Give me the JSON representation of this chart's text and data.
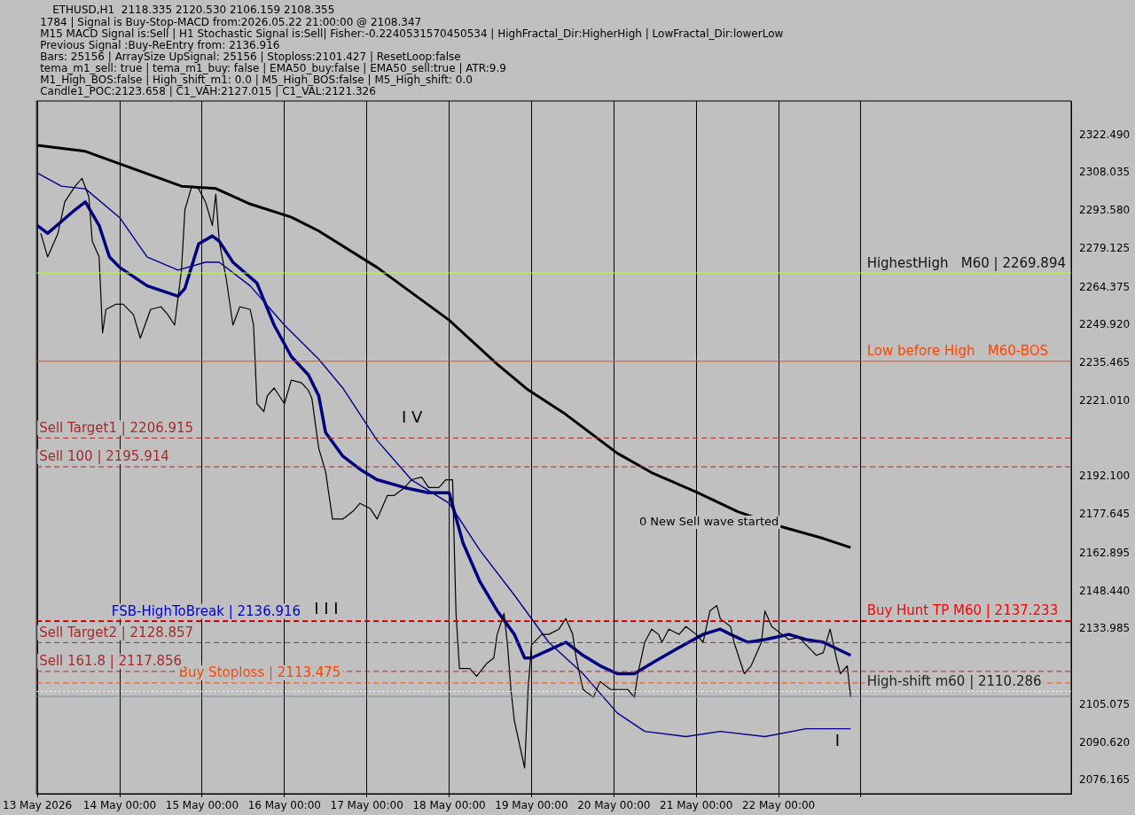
{
  "chart_data": {
    "type": "line",
    "title": "ETHUSD,H1  2118.335 2120.530 2106.159 2108.355",
    "annotations": [
      "1784 | Signal is Buy-Stop-MACD from:2026.05.22 21:00:00 @ 2108.347",
      "M15 MACD Signal is:Sell | H1 Stochastic Signal is:Sell| Fisher:-0.2240531570450534 | HighFractal_Dir:HigherHigh | LowFractal_Dir:lowerLow",
      "Previous Signal :Buy-ReEntry from: 2136.916",
      "Bars: 25156 | ArraySize UpSignal: 25156 | Stoploss:2101.427 | ResetLoop:false",
      "tema_m1_sell: true | tema_m1_buy: false | EMA50_buy:false | EMA50_sell:true | ATR:9.9",
      "M1_High_BOS:false | High_shift_m1: 0.0 | M5_High_BOS:false | M5_High_shift: 0.0",
      "Candle1_POC:2123.658 | C1_VAH:2127.015 | C1_VAL:2121.326",
      "I V",
      "I I I",
      "0 New Sell wave started",
      "I"
    ],
    "xlim": [
      "2026-05-12T23:45",
      "2026-05-25T13:15"
    ],
    "xticks": [
      {
        "value": "2026-05-13T00:00",
        "label": "13 May 2026"
      },
      {
        "value": "2026-05-14T00:00",
        "label": "14 May 00:00"
      },
      {
        "value": "2026-05-15T00:00",
        "label": "15 May 00:00"
      },
      {
        "value": "2026-05-16T00:00",
        "label": "16 May 00:00"
      },
      {
        "value": "2026-05-17T00:00",
        "label": "17 May 00:00"
      },
      {
        "value": "2026-05-18T00:00",
        "label": "18 May 00:00"
      },
      {
        "value": "2026-05-19T00:00",
        "label": "19 May 00:00"
      },
      {
        "value": "2026-05-20T00:00",
        "label": "20 May 00:00"
      },
      {
        "value": "2026-05-21T00:00",
        "label": "21 May 00:00"
      },
      {
        "value": "2026-05-22T00:00",
        "label": "22 May 00:00"
      },
      {
        "value": "2026-05-23T00:00",
        "label": null
      }
    ],
    "ylim": [
      2071.2,
      2335.5
    ],
    "yticks": [
      {
        "value": 2322.49,
        "label": "2322.490"
      },
      {
        "value": 2308.035,
        "label": "2308.035"
      },
      {
        "value": 2293.58,
        "label": "2293.580"
      },
      {
        "value": 2279.125,
        "label": "2279.125"
      },
      {
        "value": 2264.375,
        "label": "2264.375"
      },
      {
        "value": 2249.92,
        "label": "2249.920"
      },
      {
        "value": 2235.465,
        "label": "2235.465"
      },
      {
        "value": 2221.01,
        "label": "2221.010"
      },
      {
        "value": 2192.1,
        "label": "2192.100"
      },
      {
        "value": 2177.645,
        "label": "2177.645"
      },
      {
        "value": 2162.895,
        "label": "2162.895"
      },
      {
        "value": 2148.44,
        "label": "2148.440"
      },
      {
        "value": 2133.985,
        "label": "2133.985"
      },
      {
        "value": 2105.075,
        "label": "2105.075"
      },
      {
        "value": 2090.62,
        "label": "2090.620"
      },
      {
        "value": 2076.165,
        "label": "2076.165"
      }
    ],
    "grid": "x",
    "legend": false,
    "marker": "none",
    "line_style": "solid",
    "series": [
      {
        "color": "#000000",
        "x": [
          "2026-05-13T01:00",
          "2026-05-13T03:00",
          "2026-05-13T06:00",
          "2026-05-13T08:00",
          "2026-05-13T11:00",
          "2026-05-13T13:00",
          "2026-05-13T15:00",
          "2026-05-13T16:00",
          "2026-05-13T18:00",
          "2026-05-13T19:00",
          "2026-05-13T20:00",
          "2026-05-13T23:00",
          "2026-05-14T01:00",
          "2026-05-14T04:00",
          "2026-05-14T06:00",
          "2026-05-14T09:00",
          "2026-05-14T12:00",
          "2026-05-14T14:00",
          "2026-05-14T16:00",
          "2026-05-14T18:00",
          "2026-05-14T19:00",
          "2026-05-14T21:00",
          "2026-05-14T23:00",
          "2026-05-15T01:00",
          "2026-05-15T03:00",
          "2026-05-15T04:00",
          "2026-05-15T05:00",
          "2026-05-15T07:00",
          "2026-05-15T09:00",
          "2026-05-15T11:00",
          "2026-05-15T14:00",
          "2026-05-15T15:00",
          "2026-05-15T16:00",
          "2026-05-15T18:00",
          "2026-05-15T19:00",
          "2026-05-15T21:00",
          "2026-05-16T00:00",
          "2026-05-16T02:00",
          "2026-05-16T05:00",
          "2026-05-16T07:00",
          "2026-05-16T08:00",
          "2026-05-16T10:00",
          "2026-05-16T12:00",
          "2026-05-16T14:00",
          "2026-05-16T17:00",
          "2026-05-16T20:00",
          "2026-05-16T22:00",
          "2026-05-17T01:00",
          "2026-05-17T03:00",
          "2026-05-17T06:00",
          "2026-05-17T08:00",
          "2026-05-17T11:00",
          "2026-05-17T13:00",
          "2026-05-17T16:00",
          "2026-05-17T18:00",
          "2026-05-17T21:00",
          "2026-05-17T23:00",
          "2026-05-18T01:00",
          "2026-05-18T02:00",
          "2026-05-18T03:00",
          "2026-05-18T06:00",
          "2026-05-18T08:00",
          "2026-05-18T11:00",
          "2026-05-18T13:00",
          "2026-05-18T14:00",
          "2026-05-18T16:00",
          "2026-05-18T17:00",
          "2026-05-18T18:00",
          "2026-05-18T19:00",
          "2026-05-18T21:00",
          "2026-05-18T22:00",
          "2026-05-18T23:00",
          "2026-05-19T00:00",
          "2026-05-19T03:00",
          "2026-05-19T05:00",
          "2026-05-19T08:00",
          "2026-05-19T10:00",
          "2026-05-19T12:00",
          "2026-05-19T13:00",
          "2026-05-19T15:00",
          "2026-05-19T18:00",
          "2026-05-19T20:00",
          "2026-05-19T23:00",
          "2026-05-20T01:00",
          "2026-05-20T04:00",
          "2026-05-20T06:00",
          "2026-05-20T07:00",
          "2026-05-20T09:00",
          "2026-05-20T11:00",
          "2026-05-20T13:00",
          "2026-05-20T14:00",
          "2026-05-20T16:00",
          "2026-05-20T19:00",
          "2026-05-20T21:00",
          "2026-05-21T00:00",
          "2026-05-21T02:00",
          "2026-05-21T04:00",
          "2026-05-21T06:00",
          "2026-05-21T07:00",
          "2026-05-21T10:00",
          "2026-05-21T11:00",
          "2026-05-21T14:00",
          "2026-05-21T16:00",
          "2026-05-21T19:00",
          "2026-05-21T20:00",
          "2026-05-21T22:00",
          "2026-05-22T01:00",
          "2026-05-22T03:00",
          "2026-05-22T06:00",
          "2026-05-22T08:00",
          "2026-05-22T11:00",
          "2026-05-22T13:00",
          "2026-05-22T15:00",
          "2026-05-22T17:00",
          "2026-05-22T18:00",
          "2026-05-22T20:00",
          "2026-05-22T21:00"
        ],
        "values": [
          2285,
          2276,
          2285,
          2297,
          2303,
          2306,
          2299,
          2282,
          2276,
          2247,
          2256,
          2258,
          2258,
          2254,
          2245,
          2256,
          2257,
          2254,
          2250,
          2271,
          2294,
          2303,
          2302,
          2297,
          2288,
          2300,
          2282,
          2268,
          2250,
          2257,
          2256,
          2250,
          2220,
          2217,
          2223,
          2226,
          2220,
          2229,
          2228,
          2225,
          2222,
          2203,
          2194,
          2176,
          2176,
          2179,
          2182,
          2180,
          2176,
          2185,
          2185,
          2188,
          2191,
          2192,
          2188,
          2188,
          2191,
          2191,
          2140,
          2119,
          2119,
          2116,
          2121,
          2123,
          2132,
          2140,
          2128,
          2111,
          2099,
          2087,
          2081,
          2111,
          2128,
          2132,
          2132,
          2134,
          2138,
          2132,
          2123,
          2111,
          2108,
          2114,
          2111,
          2111,
          2111,
          2108,
          2117,
          2129,
          2134,
          2132,
          2129,
          2134,
          2132,
          2135,
          2132,
          2129,
          2141,
          2143,
          2138,
          2135,
          2129,
          2117,
          2120,
          2129,
          2141,
          2135,
          2132,
          2130,
          2131,
          2128,
          2124,
          2125,
          2134,
          2122,
          2117,
          2120,
          2108
        ]
      },
      {
        "color": "#000000",
        "x": [
          "2026-05-13T00:00",
          "2026-05-13T14:00",
          "2026-05-14T18:00",
          "2026-05-15T04:00",
          "2026-05-15T14:00",
          "2026-05-16T02:00",
          "2026-05-16T10:00",
          "2026-05-17T03:00",
          "2026-05-18T00:00",
          "2026-05-18T14:00",
          "2026-05-18T23:00",
          "2026-05-19T10:00",
          "2026-05-20T01:00",
          "2026-05-20T11:00",
          "2026-05-21T00:00",
          "2026-05-21T12:00",
          "2026-05-22T01:00",
          "2026-05-22T13:00",
          "2026-05-22T21:00"
        ],
        "values": [
          2318.6,
          2316.3,
          2303,
          2302.1,
          2296.2,
          2291.2,
          2285.9,
          2272,
          2251.9,
          2235.1,
          2225.3,
          2215.9,
          2201.1,
          2193.7,
          2186.3,
          2178.9,
          2173,
          2168.6,
          2165.1
        ]
      },
      {
        "color": "#000080",
        "x": [
          "2026-05-13T00:00",
          "2026-05-13T03:00",
          "2026-05-13T11:00",
          "2026-05-13T14:00",
          "2026-05-13T18:00",
          "2026-05-13T21:00",
          "2026-05-14T00:00",
          "2026-05-14T08:00",
          "2026-05-14T17:00",
          "2026-05-14T19:00",
          "2026-05-14T23:00",
          "2026-05-15T03:00",
          "2026-05-15T05:00",
          "2026-05-15T09:00",
          "2026-05-15T16:00",
          "2026-05-15T21:00",
          "2026-05-16T02:00",
          "2026-05-16T07:00",
          "2026-05-16T10:00",
          "2026-05-16T12:00",
          "2026-05-16T17:00",
          "2026-05-16T22:00",
          "2026-05-17T03:00",
          "2026-05-17T11:00",
          "2026-05-17T18:00",
          "2026-05-18T00:00",
          "2026-05-18T04:00",
          "2026-05-18T09:00",
          "2026-05-18T14:00",
          "2026-05-18T19:00",
          "2026-05-18T22:00",
          "2026-05-19T00:00",
          "2026-05-19T05:00",
          "2026-05-19T10:00",
          "2026-05-19T15:00",
          "2026-05-19T20:00",
          "2026-05-20T01:00",
          "2026-05-20T06:00",
          "2026-05-20T11:00",
          "2026-05-20T19:00",
          "2026-05-21T02:00",
          "2026-05-21T07:00",
          "2026-05-21T10:00",
          "2026-05-21T15:00",
          "2026-05-21T20:00",
          "2026-05-22T03:00",
          "2026-05-22T08:00",
          "2026-05-22T13:00",
          "2026-05-22T21:00"
        ],
        "values": [
          2288,
          2285,
          2294,
          2297,
          2288,
          2276,
          2272,
          2265,
          2261,
          2264,
          2281,
          2284,
          2282,
          2274,
          2266,
          2250,
          2238,
          2231,
          2223,
          2209,
          2200,
          2195,
          2191,
          2188,
          2186,
          2186,
          2167,
          2152,
          2141,
          2132,
          2123,
          2123,
          2126,
          2129,
          2124,
          2120,
          2117,
          2117,
          2121,
          2127,
          2132,
          2134,
          2132,
          2129,
          2130,
          2132,
          2130,
          2129,
          2124
        ]
      },
      {
        "color": "#00008b",
        "x": [
          "2026-05-13T00:00",
          "2026-05-13T07:00",
          "2026-05-13T14:00",
          "2026-05-14T00:00",
          "2026-05-14T08:00",
          "2026-05-14T17:00",
          "2026-05-15T01:00",
          "2026-05-15T05:00",
          "2026-05-15T14:00",
          "2026-05-16T00:00",
          "2026-05-16T10:00",
          "2026-05-16T17:00",
          "2026-05-17T03:00",
          "2026-05-17T13:00",
          "2026-05-18T00:00",
          "2026-05-18T09:00",
          "2026-05-18T19:00",
          "2026-05-19T05:00",
          "2026-05-19T15:00",
          "2026-05-20T01:00",
          "2026-05-20T09:00",
          "2026-05-20T21:00",
          "2026-05-21T07:00",
          "2026-05-21T20:00",
          "2026-05-22T08:00",
          "2026-05-22T21:00"
        ],
        "values": [
          2308,
          2303,
          2302,
          2291,
          2276,
          2271,
          2274,
          2274,
          2265,
          2250,
          2237,
          2226,
          2206,
          2191,
          2182,
          2164,
          2147,
          2129,
          2117,
          2102,
          2095,
          2093,
          2095,
          2093,
          2096,
          2096
        ]
      }
    ],
    "ref_lines": [
      {
        "axis": "y",
        "value": 2108.355,
        "label": null,
        "color": "#778899",
        "line_style": "solid"
      },
      {
        "axis": "y",
        "value": 2136.916,
        "label": "FSB-HighToBreak | 2136.916",
        "color": "#0000cd",
        "line_style": "dashed"
      },
      {
        "axis": "y",
        "value": 2113.475,
        "label": "Buy Stoploss | 2113.475",
        "color": "#ff4500",
        "line_style": "dashed"
      },
      {
        "axis": "y",
        "value": 2117.856,
        "label": "Sell 161.8 | 2117.856",
        "color": "#a52a2a",
        "line_style": "dashed"
      },
      {
        "axis": "y",
        "value": 2128.857,
        "label": "Sell Target2 | 2128.857",
        "color": "#a52a2a",
        "line_style": "dashed"
      },
      {
        "axis": "y",
        "value": 2195.914,
        "label": "Sell 100 | 2195.914",
        "color": "#a52a2a",
        "line_style": "dashed"
      },
      {
        "axis": "y",
        "value": 2206.915,
        "label": "Sell Target1 | 2206.915",
        "color": "#a52a2a",
        "line_style": "dashed"
      },
      {
        "axis": "y",
        "value": 2269.894,
        "label": "HighestHigh   M60 | 2269.894",
        "color": "#adff2f",
        "line_style": "solid"
      },
      {
        "axis": "y",
        "value": 2236.2,
        "label": "Low before High   M60-BOS",
        "color": "#ff4500",
        "line_style": "solid"
      },
      {
        "axis": "y",
        "value": 2137.233,
        "label": "Buy Hunt TP M60 | 2137.233",
        "color": "#ff0000",
        "line_style": "dashed"
      },
      {
        "axis": "y",
        "value": 2110.286,
        "label": "High-shift m60 | 2110.286",
        "color": "#ffffff",
        "line_style": "dotted"
      }
    ]
  }
}
